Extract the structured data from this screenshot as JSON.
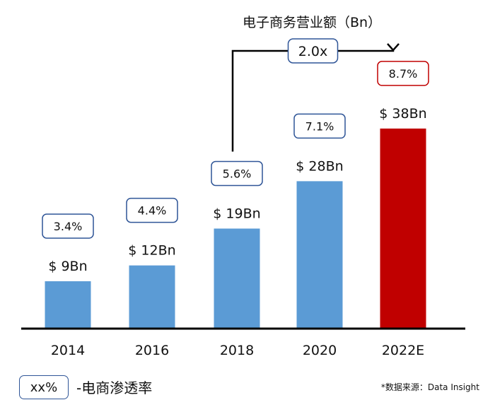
{
  "chart_data": {
    "type": "bar",
    "title": "电子商务营业额（Bn）",
    "categories": [
      "2014",
      "2016",
      "2018",
      "2020",
      "2022E"
    ],
    "values": [
      9,
      12,
      19,
      28,
      38
    ],
    "value_labels": [
      "$ 9Bn",
      "$ 12Bn",
      "$ 19Bn",
      "$ 28Bn",
      "$ 38Bn"
    ],
    "penetration_labels": [
      "3.4%",
      "4.4%",
      "5.6%",
      "7.1%",
      "8.7%"
    ],
    "growth_annotation": {
      "from": "2018",
      "to": "2022E",
      "label": "2.0x"
    },
    "colors": {
      "actual": "#5b9bd5",
      "estimate": "#c00000",
      "box_border": "#2f5597",
      "estimate_box_border": "#c00000"
    },
    "ylim": [
      0,
      45
    ],
    "xlabel": "",
    "ylabel": ""
  },
  "legend": {
    "sample": "xx%",
    "label": "-电商渗透率"
  },
  "source": "*数据来源：Data Insight"
}
